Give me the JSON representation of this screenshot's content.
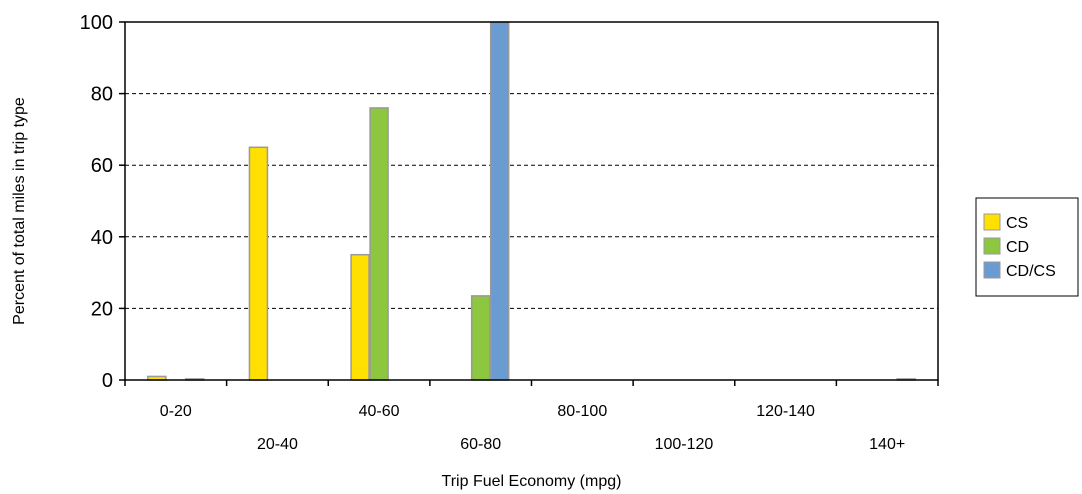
{
  "chart_data": {
    "type": "bar",
    "categories": [
      "0-20",
      "20-40",
      "40-60",
      "60-80",
      "80-100",
      "100-120",
      "120-140",
      "140+"
    ],
    "series": [
      {
        "name": "CS",
        "color": "#FFE000",
        "values": [
          1,
          65,
          35,
          0,
          0,
          0,
          0,
          0
        ]
      },
      {
        "name": "CD",
        "color": "#8DC63F",
        "values": [
          0,
          0,
          76,
          23.5,
          0,
          0,
          0,
          0
        ]
      },
      {
        "name": "CD/CS",
        "color": "#6A9BD1",
        "values": [
          0.3,
          0,
          0,
          100,
          0,
          0,
          0,
          0.3
        ]
      }
    ],
    "xlabel": "Trip Fuel Economy (mpg)",
    "ylabel": "Percent of total miles in trip type",
    "ylim": [
      0,
      100
    ],
    "yticks": [
      0,
      20,
      40,
      60,
      80,
      100
    ],
    "grid": "dashed horizontal",
    "legend_position": "right"
  }
}
